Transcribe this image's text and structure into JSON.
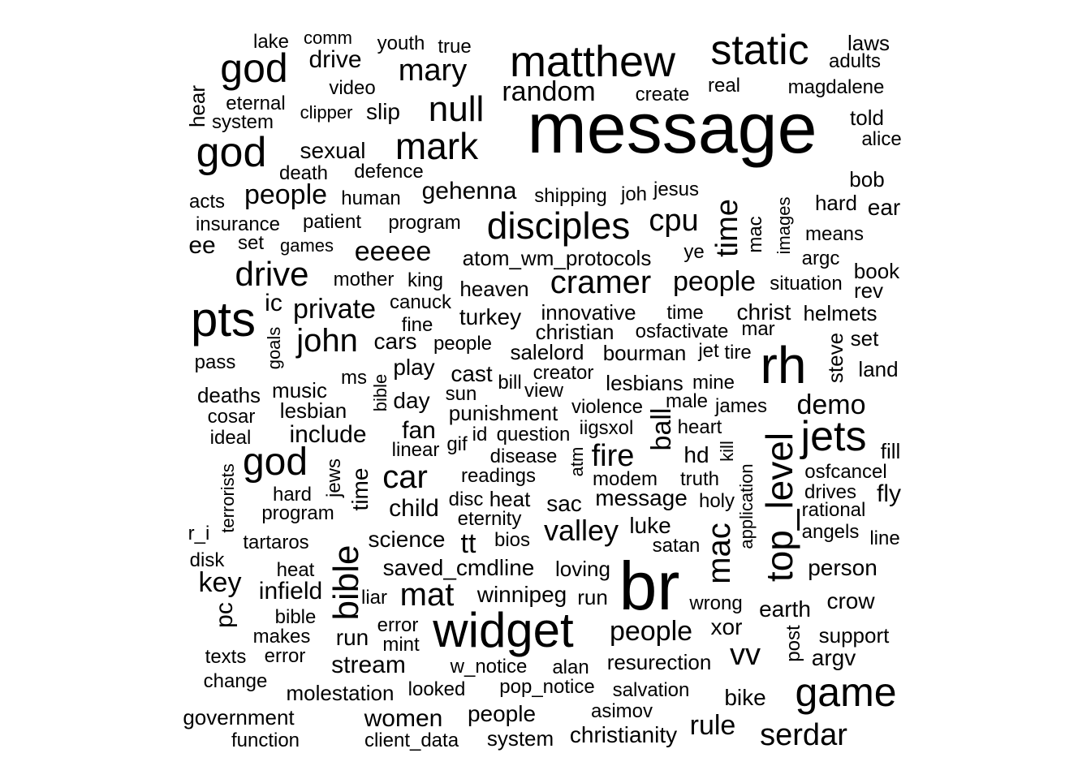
{
  "color": "#000000",
  "background": "#ffffff",
  "words": [
    {
      "text": "message",
      "w": 10,
      "v": false
    },
    {
      "text": "br",
      "w": 8,
      "v": false
    },
    {
      "text": "matthew",
      "w": 7,
      "v": false
    },
    {
      "text": "static",
      "w": 7,
      "v": false
    },
    {
      "text": "widget",
      "w": 7,
      "v": false
    },
    {
      "text": "pts",
      "w": 7,
      "v": false
    },
    {
      "text": "rh",
      "w": 7,
      "v": false
    },
    {
      "text": "jets",
      "w": 6,
      "v": false
    },
    {
      "text": "game",
      "w": 6,
      "v": false
    },
    {
      "text": "god",
      "w": 6,
      "v": false
    },
    {
      "text": "god",
      "w": 6,
      "v": false
    },
    {
      "text": "god",
      "w": 6,
      "v": false
    },
    {
      "text": "top_level",
      "w": 6,
      "v": true
    },
    {
      "text": "bible",
      "w": 6,
      "v": true
    },
    {
      "text": "disciples",
      "w": 5,
      "v": false
    },
    {
      "text": "mark",
      "w": 5,
      "v": false
    },
    {
      "text": "null",
      "w": 5,
      "v": false
    },
    {
      "text": "drive",
      "w": 5,
      "v": false
    },
    {
      "text": "mary",
      "w": 5,
      "v": false
    },
    {
      "text": "cramer",
      "w": 5,
      "v": false
    },
    {
      "text": "cpu",
      "w": 5,
      "v": false
    },
    {
      "text": "car",
      "w": 5,
      "v": false
    },
    {
      "text": "john",
      "w": 5,
      "v": false
    },
    {
      "text": "mat",
      "w": 5,
      "v": false
    },
    {
      "text": "serdar",
      "w": 5,
      "v": false
    },
    {
      "text": "mac",
      "w": 5,
      "v": true
    },
    {
      "text": "time",
      "w": 5,
      "v": true
    },
    {
      "text": "random",
      "w": 4,
      "v": false
    },
    {
      "text": "people",
      "w": 4,
      "v": false
    },
    {
      "text": "people",
      "w": 4,
      "v": false
    },
    {
      "text": "people",
      "w": 4,
      "v": false
    },
    {
      "text": "private",
      "w": 4,
      "v": false
    },
    {
      "text": "eeeee",
      "w": 4,
      "v": false
    },
    {
      "text": "fire",
      "w": 4,
      "v": false
    },
    {
      "text": "valley",
      "w": 4,
      "v": false
    },
    {
      "text": "demo",
      "w": 4,
      "v": false
    },
    {
      "text": "rule",
      "w": 4,
      "v": false
    },
    {
      "text": "vv",
      "w": 4,
      "v": false
    },
    {
      "text": "key",
      "w": 4,
      "v": false
    },
    {
      "text": "ball",
      "w": 4,
      "v": true
    },
    {
      "text": "drive",
      "w": 3,
      "v": false
    },
    {
      "text": "gehenna",
      "w": 3,
      "v": false
    },
    {
      "text": "sexual",
      "w": 3,
      "v": false
    },
    {
      "text": "slip",
      "w": 3,
      "v": false
    },
    {
      "text": "ee",
      "w": 3,
      "v": false
    },
    {
      "text": "ic",
      "w": 3,
      "v": false
    },
    {
      "text": "turkey",
      "w": 3,
      "v": false
    },
    {
      "text": "christ",
      "w": 3,
      "v": false
    },
    {
      "text": "fan",
      "w": 3,
      "v": false
    },
    {
      "text": "include",
      "w": 3,
      "v": false
    },
    {
      "text": "cars",
      "w": 3,
      "v": false
    },
    {
      "text": "infield",
      "w": 3,
      "v": false
    },
    {
      "text": "child",
      "w": 3,
      "v": false
    },
    {
      "text": "science",
      "w": 3,
      "v": false
    },
    {
      "text": "saved_cmdline",
      "w": 3,
      "v": false
    },
    {
      "text": "winnipeg",
      "w": 3,
      "v": false
    },
    {
      "text": "stream",
      "w": 3,
      "v": false
    },
    {
      "text": "women",
      "w": 3,
      "v": false
    },
    {
      "text": "people",
      "w": 3,
      "v": false
    },
    {
      "text": "christianity",
      "w": 3,
      "v": false
    },
    {
      "text": "bike",
      "w": 3,
      "v": false
    },
    {
      "text": "hd",
      "w": 3,
      "v": false
    },
    {
      "text": "fly",
      "w": 3,
      "v": false
    },
    {
      "text": "xor",
      "w": 3,
      "v": false
    },
    {
      "text": "luke",
      "w": 3,
      "v": false
    },
    {
      "text": "message",
      "w": 3,
      "v": false
    },
    {
      "text": "sac",
      "w": 3,
      "v": false
    },
    {
      "text": "earth",
      "w": 3,
      "v": false
    },
    {
      "text": "crow",
      "w": 3,
      "v": false
    },
    {
      "text": "person",
      "w": 3,
      "v": false
    },
    {
      "text": "support",
      "w": 3,
      "v": false
    },
    {
      "text": "argv",
      "w": 3,
      "v": false
    },
    {
      "text": "resurection",
      "w": 3,
      "v": false
    },
    {
      "text": "run",
      "w": 3,
      "v": false
    },
    {
      "text": "play",
      "w": 3,
      "v": false
    },
    {
      "text": "day",
      "w": 3,
      "v": false
    },
    {
      "text": "cast",
      "w": 3,
      "v": false
    },
    {
      "text": "punishment",
      "w": 3,
      "v": false
    },
    {
      "text": "bourman",
      "w": 3,
      "v": false
    },
    {
      "text": "salelord",
      "w": 3,
      "v": false
    },
    {
      "text": "lesbians",
      "w": 3,
      "v": false
    },
    {
      "text": "innovative",
      "w": 3,
      "v": false
    },
    {
      "text": "christian",
      "w": 3,
      "v": false
    },
    {
      "text": "heaven",
      "w": 3,
      "v": false
    },
    {
      "text": "tt",
      "w": 3,
      "v": false
    },
    {
      "text": "land",
      "w": 3,
      "v": false
    },
    {
      "text": "helmets",
      "w": 3,
      "v": false
    },
    {
      "text": "set",
      "w": 3,
      "v": false
    },
    {
      "text": "book",
      "w": 3,
      "v": false
    },
    {
      "text": "rev",
      "w": 3,
      "v": false
    },
    {
      "text": "hard",
      "w": 3,
      "v": false
    },
    {
      "text": "ear",
      "w": 3,
      "v": false
    },
    {
      "text": "bob",
      "w": 3,
      "v": false
    },
    {
      "text": "told",
      "w": 3,
      "v": false
    },
    {
      "text": "laws",
      "w": 3,
      "v": false
    },
    {
      "text": "argc",
      "w": 3,
      "v": false
    },
    {
      "text": "bible",
      "w": 3,
      "v": false
    },
    {
      "text": "pc",
      "w": 3,
      "v": true
    },
    {
      "text": "steve",
      "w": 3,
      "v": true
    },
    {
      "text": "time",
      "w": 3,
      "v": true
    },
    {
      "text": "eternal",
      "w": 2,
      "v": false
    },
    {
      "text": "video",
      "w": 2,
      "v": false
    },
    {
      "text": "youth",
      "w": 2,
      "v": false
    },
    {
      "text": "lake",
      "w": 2,
      "v": false
    },
    {
      "text": "comm",
      "w": 2,
      "v": false
    },
    {
      "text": "true",
      "w": 2,
      "v": false
    },
    {
      "text": "create",
      "w": 2,
      "v": false
    },
    {
      "text": "real",
      "w": 2,
      "v": false
    },
    {
      "text": "adults",
      "w": 2,
      "v": false
    },
    {
      "text": "magdalene",
      "w": 2,
      "v": false
    },
    {
      "text": "alice",
      "w": 2,
      "v": false
    },
    {
      "text": "system",
      "w": 2,
      "v": false
    },
    {
      "text": "clipper",
      "w": 2,
      "v": false
    },
    {
      "text": "death",
      "w": 2,
      "v": false
    },
    {
      "text": "defence",
      "w": 2,
      "v": false
    },
    {
      "text": "acts",
      "w": 2,
      "v": false
    },
    {
      "text": "human",
      "w": 2,
      "v": false
    },
    {
      "text": "shipping",
      "w": 2,
      "v": false
    },
    {
      "text": "joh",
      "w": 2,
      "v": false
    },
    {
      "text": "jesus",
      "w": 2,
      "v": false
    },
    {
      "text": "insurance",
      "w": 2,
      "v": false
    },
    {
      "text": "patient",
      "w": 2,
      "v": false
    },
    {
      "text": "program",
      "w": 2,
      "v": false
    },
    {
      "text": "set",
      "w": 2,
      "v": false
    },
    {
      "text": "games",
      "w": 2,
      "v": false
    },
    {
      "text": "atom_wm_protocols",
      "w": 2,
      "v": false
    },
    {
      "text": "ye",
      "w": 2,
      "v": false
    },
    {
      "text": "means",
      "w": 2,
      "v": false
    },
    {
      "text": "mother",
      "w": 2,
      "v": false
    },
    {
      "text": "king",
      "w": 2,
      "v": false
    },
    {
      "text": "situation",
      "w": 2,
      "v": false
    },
    {
      "text": "canuck",
      "w": 2,
      "v": false
    },
    {
      "text": "fine",
      "w": 2,
      "v": false
    },
    {
      "text": "time",
      "w": 2,
      "v": false
    },
    {
      "text": "osfactivate",
      "w": 2,
      "v": false
    },
    {
      "text": "mar",
      "w": 2,
      "v": false
    },
    {
      "text": "people",
      "w": 2,
      "v": false
    },
    {
      "text": "jet",
      "w": 2,
      "v": false
    },
    {
      "text": "tire",
      "w": 2,
      "v": false
    },
    {
      "text": "pass",
      "w": 2,
      "v": false
    },
    {
      "text": "ms",
      "w": 2,
      "v": false
    },
    {
      "text": "bill",
      "w": 2,
      "v": false
    },
    {
      "text": "creator",
      "w": 2,
      "v": false
    },
    {
      "text": "view",
      "w": 2,
      "v": false
    },
    {
      "text": "mine",
      "w": 2,
      "v": false
    },
    {
      "text": "deaths",
      "w": 2,
      "v": false
    },
    {
      "text": "music",
      "w": 2,
      "v": false
    },
    {
      "text": "sun",
      "w": 2,
      "v": false
    },
    {
      "text": "violence",
      "w": 2,
      "v": false
    },
    {
      "text": "male",
      "w": 2,
      "v": false
    },
    {
      "text": "james",
      "w": 2,
      "v": false
    },
    {
      "text": "cosar",
      "w": 2,
      "v": false
    },
    {
      "text": "lesbian",
      "w": 2,
      "v": false
    },
    {
      "text": "id",
      "w": 2,
      "v": false
    },
    {
      "text": "question",
      "w": 2,
      "v": false
    },
    {
      "text": "iigsxol",
      "w": 2,
      "v": false
    },
    {
      "text": "heart",
      "w": 2,
      "v": false
    },
    {
      "text": "ideal",
      "w": 2,
      "v": false
    },
    {
      "text": "linear",
      "w": 2,
      "v": false
    },
    {
      "text": "gif",
      "w": 2,
      "v": false
    },
    {
      "text": "disease",
      "w": 2,
      "v": false
    },
    {
      "text": "fill",
      "w": 2,
      "v": false
    },
    {
      "text": "readings",
      "w": 2,
      "v": false
    },
    {
      "text": "modem",
      "w": 2,
      "v": false
    },
    {
      "text": "truth",
      "w": 2,
      "v": false
    },
    {
      "text": "osfcancel",
      "w": 2,
      "v": false
    },
    {
      "text": "hard",
      "w": 2,
      "v": false
    },
    {
      "text": "drives",
      "w": 2,
      "v": false
    },
    {
      "text": "disc",
      "w": 2,
      "v": false
    },
    {
      "text": "heat",
      "w": 2,
      "v": false
    },
    {
      "text": "holy",
      "w": 2,
      "v": false
    },
    {
      "text": "program",
      "w": 2,
      "v": false
    },
    {
      "text": "eternity",
      "w": 2,
      "v": false
    },
    {
      "text": "rational",
      "w": 2,
      "v": false
    },
    {
      "text": "angels",
      "w": 2,
      "v": false
    },
    {
      "text": "r_i",
      "w": 2,
      "v": false
    },
    {
      "text": "tartaros",
      "w": 2,
      "v": false
    },
    {
      "text": "bios",
      "w": 2,
      "v": false
    },
    {
      "text": "satan",
      "w": 2,
      "v": false
    },
    {
      "text": "line",
      "w": 2,
      "v": false
    },
    {
      "text": "disk",
      "w": 2,
      "v": false
    },
    {
      "text": "heat",
      "w": 2,
      "v": false
    },
    {
      "text": "loving",
      "w": 2,
      "v": false
    },
    {
      "text": "liar",
      "w": 2,
      "v": false
    },
    {
      "text": "run",
      "w": 2,
      "v": false
    },
    {
      "text": "wrong",
      "w": 2,
      "v": false
    },
    {
      "text": "error",
      "w": 2,
      "v": false
    },
    {
      "text": "makes",
      "w": 2,
      "v": false
    },
    {
      "text": "mint",
      "w": 2,
      "v": false
    },
    {
      "text": "texts",
      "w": 2,
      "v": false
    },
    {
      "text": "error",
      "w": 2,
      "v": false
    },
    {
      "text": "w_notice",
      "w": 2,
      "v": false
    },
    {
      "text": "alan",
      "w": 2,
      "v": false
    },
    {
      "text": "change",
      "w": 2,
      "v": false
    },
    {
      "text": "molestation",
      "w": 2,
      "v": false
    },
    {
      "text": "looked",
      "w": 2,
      "v": false
    },
    {
      "text": "pop_notice",
      "w": 2,
      "v": false
    },
    {
      "text": "salvation",
      "w": 2,
      "v": false
    },
    {
      "text": "government",
      "w": 2,
      "v": false
    },
    {
      "text": "asimov",
      "w": 2,
      "v": false
    },
    {
      "text": "function",
      "w": 2,
      "v": false
    },
    {
      "text": "client_data",
      "w": 2,
      "v": false
    },
    {
      "text": "system",
      "w": 2,
      "v": false
    },
    {
      "text": "hear",
      "w": 2,
      "v": true
    },
    {
      "text": "mac",
      "w": 2,
      "v": true
    },
    {
      "text": "images",
      "w": 2,
      "v": true
    },
    {
      "text": "goals",
      "w": 2,
      "v": true
    },
    {
      "text": "bible",
      "w": 2,
      "v": true
    },
    {
      "text": "terrorists",
      "w": 2,
      "v": true
    },
    {
      "text": "jews",
      "w": 2,
      "v": true
    },
    {
      "text": "atm",
      "w": 2,
      "v": true
    },
    {
      "text": "kill",
      "w": 2,
      "v": true
    },
    {
      "text": "application",
      "w": 2,
      "v": true
    },
    {
      "text": "post",
      "w": 2,
      "v": true
    }
  ]
}
